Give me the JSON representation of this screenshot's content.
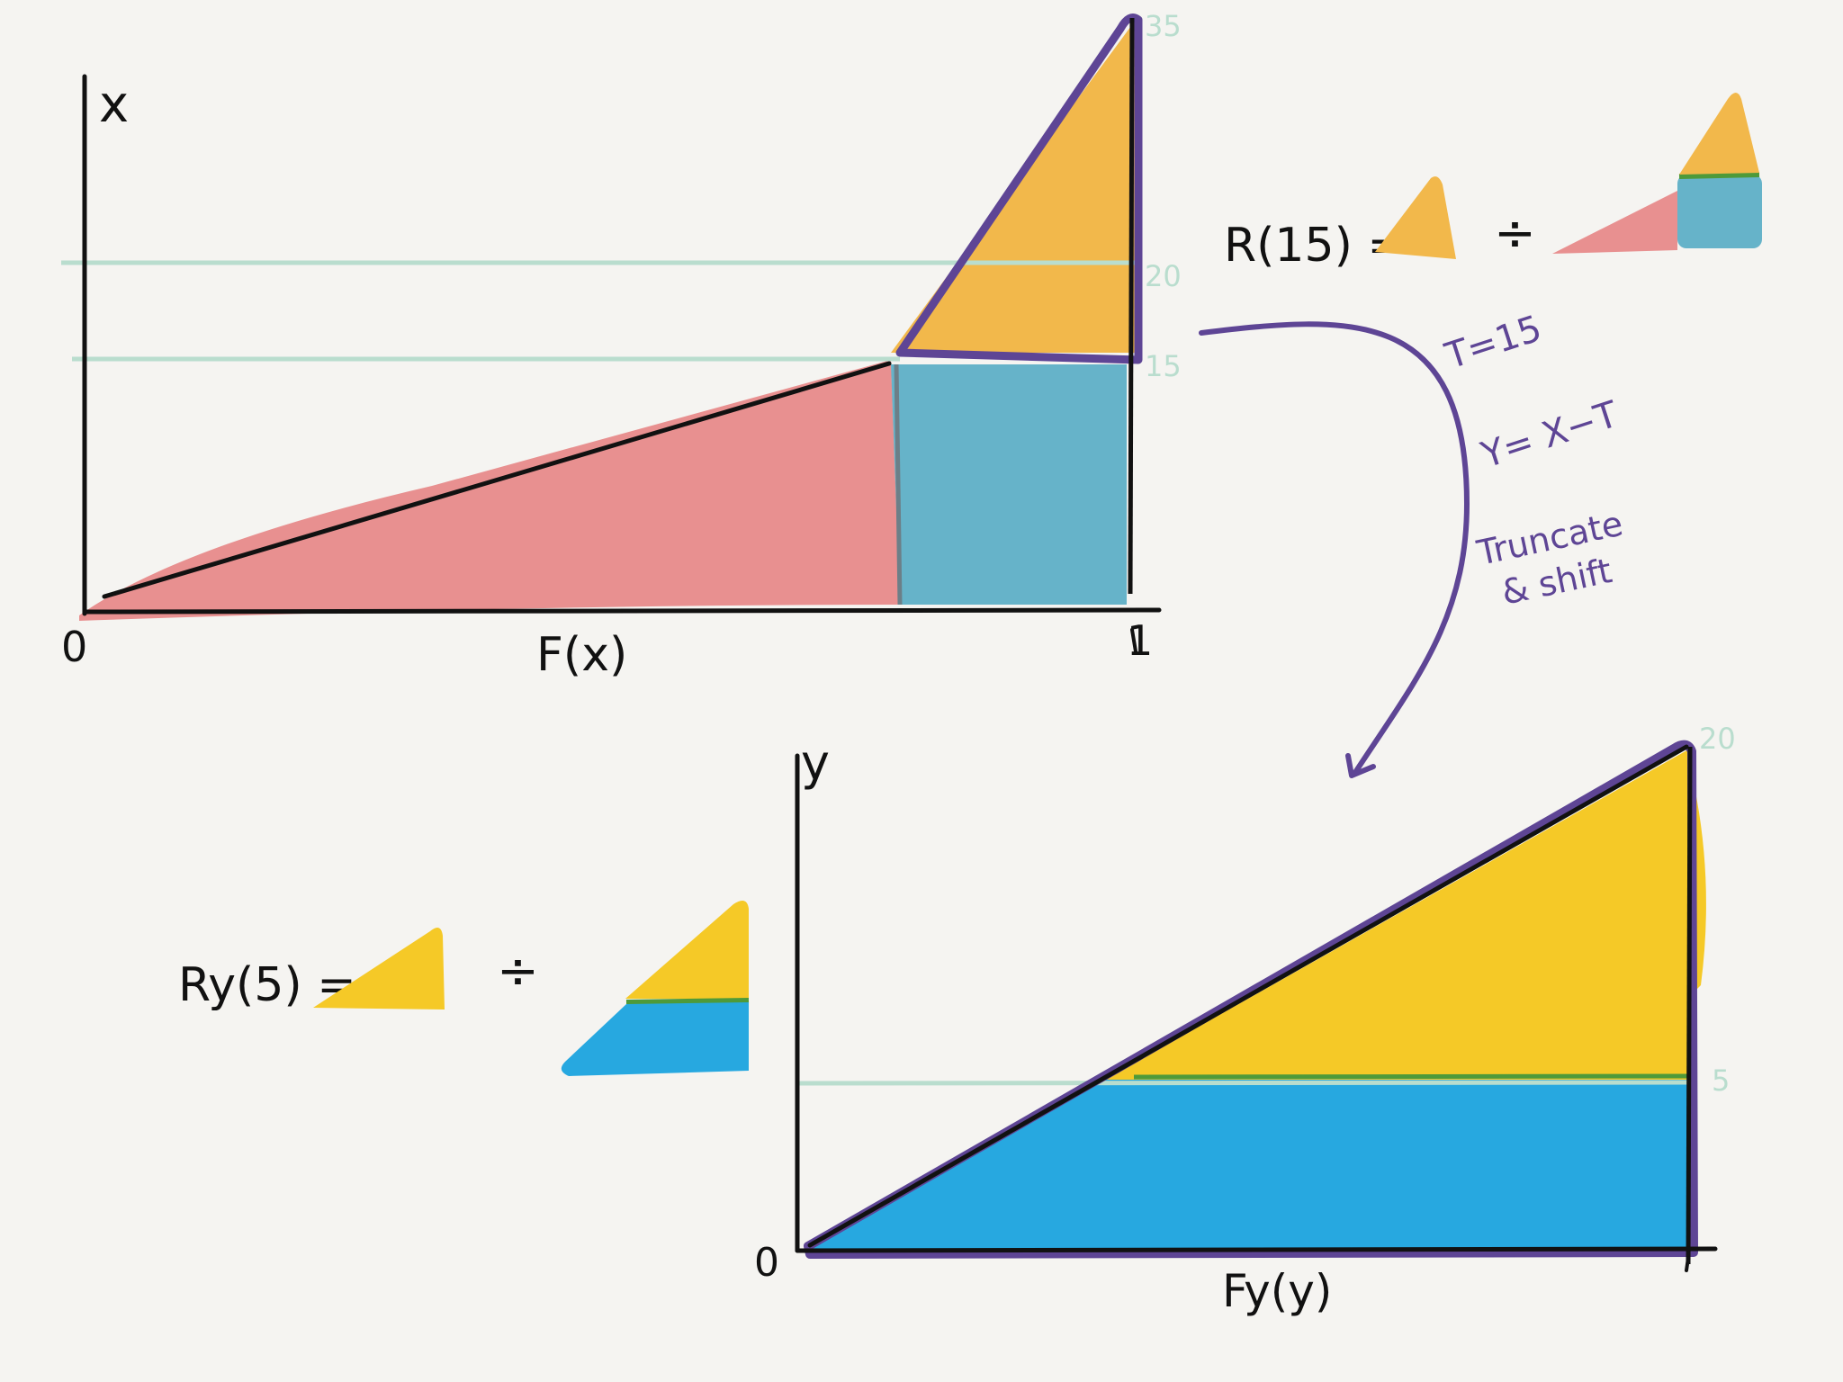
{
  "top_plot": {
    "y_axis_label": "x",
    "x_axis_label": "F(x)",
    "origin_label": "0",
    "x_end_label": "1",
    "tick_labels": [
      "35",
      "20",
      "15"
    ]
  },
  "formula_top": {
    "lhs": "R(15) =",
    "op": "÷"
  },
  "annotations": {
    "t_value": "T=15",
    "y_def": "Y= X−T",
    "truncate_line1": "Truncate",
    "truncate_line2": "& shift"
  },
  "bottom_plot": {
    "y_axis_label": "y",
    "x_axis_label": "Fy(y)",
    "origin_label": "0",
    "tick_labels": [
      "20",
      "5"
    ]
  },
  "formula_bottom": {
    "lhs": "Ry(5) =",
    "op": "÷"
  },
  "colors": {
    "background": "#f5f4f1",
    "pink": "#e89090",
    "orange": "#f2b84b",
    "teal": "#66b3c9",
    "yellow": "#f5c927",
    "blue": "#27a8e0",
    "purple": "#5e4595",
    "mint": "#b9ddce",
    "green": "#4e9a3a",
    "ink": "#111111"
  }
}
